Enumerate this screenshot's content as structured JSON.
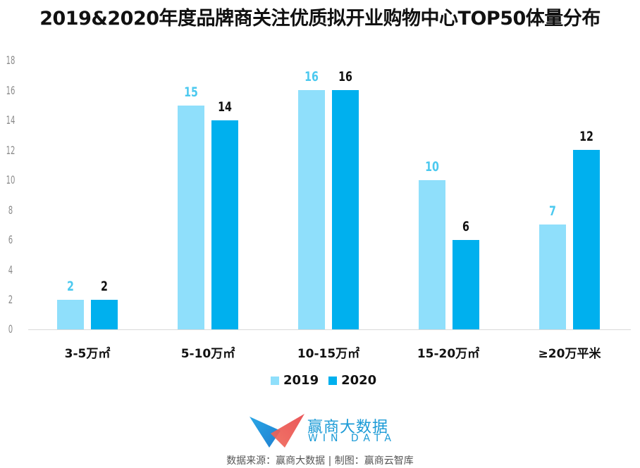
{
  "title": "2019&2020年度品牌商关注优质拟开业购物中心TOP50体量分布",
  "y_ticks": [
    "18",
    "16",
    "14",
    "12",
    "10",
    "8",
    "6",
    "4",
    "2",
    "0"
  ],
  "categories": [
    "3-5万㎡",
    "5-10万㎡",
    "10-15万㎡",
    "15-20万㎡",
    "≥20万平米"
  ],
  "values_2019": [
    "2",
    "15",
    "16",
    "10",
    "7"
  ],
  "values_2020": [
    "2",
    "14",
    "16",
    "6",
    "12"
  ],
  "legend": {
    "s2019": "2019",
    "s2020": "2020"
  },
  "colors": {
    "s2019": "#8fdffb",
    "s2020": "#00b0ee",
    "label2019": "#4cc9ef",
    "label2020": "#111111"
  },
  "logo": {
    "cn": "赢商大数据",
    "en": "WIN DATA"
  },
  "source": "数据来源：赢商大数据 | 制图：赢商云智库",
  "chart_data": {
    "type": "bar",
    "title": "2019&2020年度品牌商关注优质拟开业购物中心TOP50体量分布",
    "categories": [
      "3-5万㎡",
      "5-10万㎡",
      "10-15万㎡",
      "15-20万㎡",
      "≥20万平米"
    ],
    "series": [
      {
        "name": "2019",
        "values": [
          2,
          15,
          16,
          10,
          7
        ],
        "color": "#8fdffb"
      },
      {
        "name": "2020",
        "values": [
          2,
          14,
          16,
          6,
          12
        ],
        "color": "#00b0ee"
      }
    ],
    "xlabel": "",
    "ylabel": "",
    "ylim": [
      0,
      18
    ],
    "yticks": [
      0,
      2,
      4,
      6,
      8,
      10,
      12,
      14,
      16,
      18
    ],
    "grid": false,
    "legend_position": "bottom"
  }
}
